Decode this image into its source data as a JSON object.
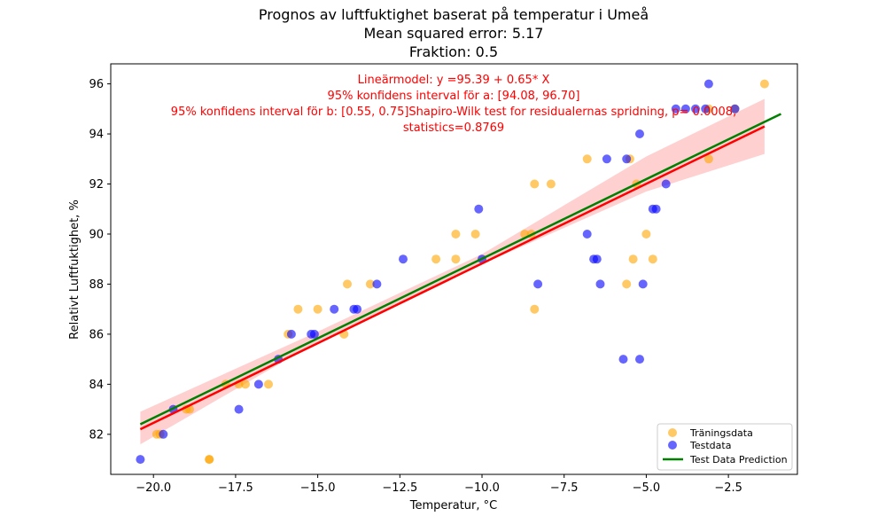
{
  "chart_data": {
    "type": "scatter",
    "title_lines": [
      "Prognos av luftfuktighet baserat på temperatur i Umeå",
      "Mean squared error: 5.17",
      "Fraktion: 0.5"
    ],
    "xlabel": "Temperatur, °C",
    "ylabel": "Relativt Luftfuktighet, %",
    "xlim": [
      -21.3,
      -0.4
    ],
    "ylim": [
      80.4,
      96.8
    ],
    "x_ticks": [
      -20.0,
      -17.5,
      -15.0,
      -12.5,
      -10.0,
      -7.5,
      -5.0,
      -2.5
    ],
    "x_tick_labels": [
      "−20.0",
      "−17.5",
      "−15.0",
      "−12.5",
      "−10.0",
      "−7.5",
      "−5.0",
      "−2.5"
    ],
    "y_ticks": [
      82,
      84,
      86,
      88,
      90,
      92,
      94,
      96
    ],
    "y_tick_labels": [
      "82",
      "84",
      "86",
      "88",
      "90",
      "92",
      "94",
      "96"
    ],
    "grid": false,
    "legend_position": "lower-right",
    "annotation_lines": [
      "Lineärmodel: y =95.39 +  0.65* X",
      "95% konfidens interval för a: [94.08, 96.70]",
      "95% konfidens interval för b: [0.55, 0.75]Shapiro-Wilk test for residualernas spridning, p= 0.0008,",
      "statistics=0.8769"
    ],
    "series": [
      {
        "name": "Träningsdata",
        "color": "#ffa500",
        "alpha": 0.6,
        "points": [
          [
            -19.9,
            82
          ],
          [
            -19.8,
            82
          ],
          [
            -19.0,
            83
          ],
          [
            -18.9,
            83
          ],
          [
            -18.3,
            81
          ],
          [
            -18.3,
            81
          ],
          [
            -17.8,
            84
          ],
          [
            -17.4,
            84
          ],
          [
            -17.2,
            84
          ],
          [
            -16.5,
            84
          ],
          [
            -15.9,
            86
          ],
          [
            -15.6,
            87
          ],
          [
            -15.0,
            87
          ],
          [
            -14.2,
            86
          ],
          [
            -14.1,
            88
          ],
          [
            -13.4,
            88
          ],
          [
            -11.4,
            89
          ],
          [
            -10.8,
            90
          ],
          [
            -10.8,
            89
          ],
          [
            -10.2,
            90
          ],
          [
            -8.7,
            90
          ],
          [
            -8.5,
            90
          ],
          [
            -8.4,
            92
          ],
          [
            -8.4,
            87
          ],
          [
            -7.9,
            92
          ],
          [
            -6.8,
            93
          ],
          [
            -5.5,
            93
          ],
          [
            -5.6,
            88
          ],
          [
            -5.4,
            89
          ],
          [
            -5.3,
            92
          ],
          [
            -5.0,
            90
          ],
          [
            -4.8,
            89
          ],
          [
            -3.1,
            93
          ],
          [
            -3.1,
            95
          ],
          [
            -2.3,
            95
          ],
          [
            -1.4,
            96
          ]
        ]
      },
      {
        "name": "Testdata",
        "color": "#0000ff",
        "alpha": 0.6,
        "points": [
          [
            -20.4,
            81
          ],
          [
            -19.7,
            82
          ],
          [
            -19.4,
            83
          ],
          [
            -17.4,
            83
          ],
          [
            -16.8,
            84
          ],
          [
            -16.2,
            85
          ],
          [
            -15.8,
            86
          ],
          [
            -15.2,
            86
          ],
          [
            -15.1,
            86
          ],
          [
            -14.5,
            87
          ],
          [
            -13.9,
            87
          ],
          [
            -13.8,
            87
          ],
          [
            -13.2,
            88
          ],
          [
            -12.4,
            89
          ],
          [
            -10.1,
            91
          ],
          [
            -10.0,
            89
          ],
          [
            -8.3,
            88
          ],
          [
            -6.8,
            90
          ],
          [
            -6.6,
            89
          ],
          [
            -6.5,
            89
          ],
          [
            -6.4,
            88
          ],
          [
            -6.2,
            93
          ],
          [
            -5.6,
            93
          ],
          [
            -5.7,
            85
          ],
          [
            -5.2,
            94
          ],
          [
            -5.2,
            85
          ],
          [
            -5.1,
            88
          ],
          [
            -4.8,
            91
          ],
          [
            -4.7,
            91
          ],
          [
            -4.4,
            92
          ],
          [
            -4.1,
            95
          ],
          [
            -3.8,
            95
          ],
          [
            -3.5,
            95
          ],
          [
            -3.2,
            95
          ],
          [
            -3.1,
            96
          ],
          [
            -2.3,
            95
          ]
        ]
      }
    ],
    "fit_line": {
      "color": "#ff0000",
      "x": [
        -20.4,
        -1.4
      ],
      "y": [
        82.2,
        94.3
      ]
    },
    "confidence_band": {
      "color": "#ffaaaa",
      "x": [
        -20.4,
        -15.0,
        -10.0,
        -5.0,
        -1.4
      ],
      "lower": [
        81.6,
        85.7,
        88.8,
        91.7,
        93.2
      ],
      "upper": [
        82.9,
        86.1,
        89.2,
        93.1,
        95.4
      ]
    },
    "prediction_line": {
      "name": "Test Data Prediction",
      "color": "#008000",
      "x": [
        -20.4,
        -0.9
      ],
      "y": [
        82.4,
        94.8
      ]
    }
  }
}
